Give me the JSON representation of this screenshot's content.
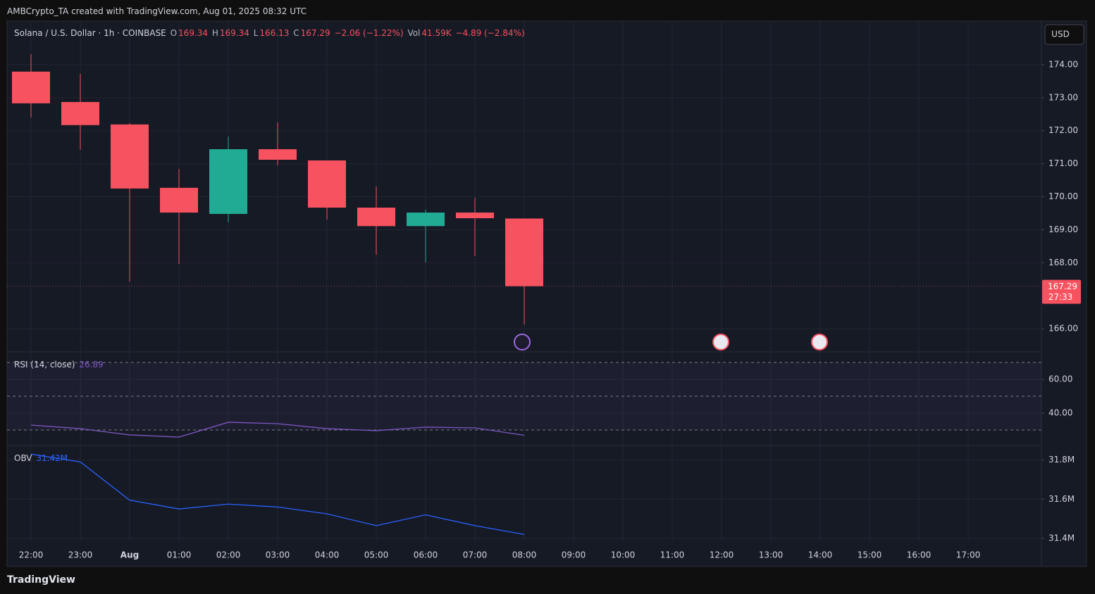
{
  "header": {
    "text": "AMBCrypto_TA created with TradingView.com, Aug 01, 2025 08:32 UTC"
  },
  "footer": {
    "logo": "TradingView"
  },
  "currency": "USD",
  "chart_data": [
    {
      "type": "candlestick",
      "title": "Solana / U.S. Dollar · 1h · COINBASE",
      "ohlc_labels": [
        "O",
        "H",
        "L",
        "C"
      ],
      "change": "−2.06 (−1.22%)",
      "volume_label": "Vol",
      "volume": "41.59K",
      "volume_change": "−4.89 (−2.84%)",
      "countdown": "27:33",
      "categories": [
        "22:00",
        "23:00",
        "Aug",
        "01:00",
        "02:00",
        "03:00",
        "04:00",
        "05:00",
        "06:00",
        "07:00",
        "08:00",
        "09:00",
        "10:00",
        "11:00",
        "12:00",
        "13:00",
        "14:00",
        "15:00",
        "16:00",
        "17:00"
      ],
      "open": [
        173.79,
        172.87,
        172.19,
        170.27,
        169.48,
        171.44,
        171.1,
        169.67,
        169.11,
        169.52,
        169.34,
        null,
        null,
        null,
        null,
        null,
        null,
        null,
        null,
        null
      ],
      "high": [
        174.32,
        173.72,
        172.23,
        170.84,
        171.82,
        172.25,
        171.1,
        170.31,
        169.61,
        169.97,
        169.34,
        null,
        null,
        null,
        null,
        null,
        null,
        null,
        null,
        null
      ],
      "low": [
        172.4,
        171.42,
        167.43,
        167.96,
        169.22,
        170.95,
        169.31,
        168.24,
        168.01,
        168.2,
        166.13,
        null,
        null,
        null,
        null,
        null,
        null,
        null,
        null,
        null
      ],
      "close": [
        172.83,
        172.17,
        170.25,
        169.52,
        171.44,
        171.12,
        169.67,
        169.11,
        169.52,
        169.35,
        167.29,
        null,
        null,
        null,
        null,
        null,
        null,
        null,
        null,
        null
      ],
      "up_color": "#22ab94",
      "down_color": "#f7525f",
      "ylim": [
        165.3,
        175.32
      ],
      "yticks": [
        {
          "value": 166,
          "label": "166.00"
        },
        {
          "value": 168,
          "label": "168.00"
        },
        {
          "value": 169,
          "label": "169.00"
        },
        {
          "value": 170,
          "label": "170.00"
        },
        {
          "value": 171,
          "label": "171.00"
        },
        {
          "value": 172,
          "label": "172.00"
        },
        {
          "value": 173,
          "label": "173.00"
        },
        {
          "value": 174,
          "label": "174.00"
        }
      ],
      "grid": true
    },
    {
      "type": "line",
      "title": "RSI (14, close)",
      "color": "#7e57c2",
      "values": [
        32.9,
        30.8,
        27.1,
        25.8,
        34.6,
        33.75,
        30.8,
        29.6,
        31.7,
        31.25,
        26.89,
        null,
        null,
        null,
        null,
        null,
        null,
        null,
        null,
        null
      ],
      "bands": [
        70,
        50,
        30
      ],
      "ylim": [
        20.83,
        76.25
      ],
      "yticks": [
        {
          "value": 40,
          "label": "40.00"
        },
        {
          "value": 60,
          "label": "60.00"
        }
      ],
      "grid": true
    },
    {
      "type": "line",
      "title": "OBV",
      "color": "#2962ff",
      "values": [
        31.83,
        31.79,
        31.595,
        31.55,
        31.575,
        31.56,
        31.525,
        31.465,
        31.52,
        31.465,
        31.42,
        null,
        null,
        null,
        null,
        null,
        null,
        null,
        null,
        null
      ],
      "value_labels": [
        null,
        null,
        null,
        null,
        null,
        null,
        null,
        null,
        null,
        null,
        "31.42M",
        null,
        null,
        null,
        null,
        null,
        null,
        null,
        null,
        null
      ],
      "ylim": [
        31.389,
        31.874
      ],
      "yticks": [
        {
          "value": 31.4,
          "label": "31.4M"
        },
        {
          "value": 31.6,
          "label": "31.6M"
        },
        {
          "value": 31.8,
          "label": "31.8M"
        }
      ],
      "grid": true
    }
  ]
}
